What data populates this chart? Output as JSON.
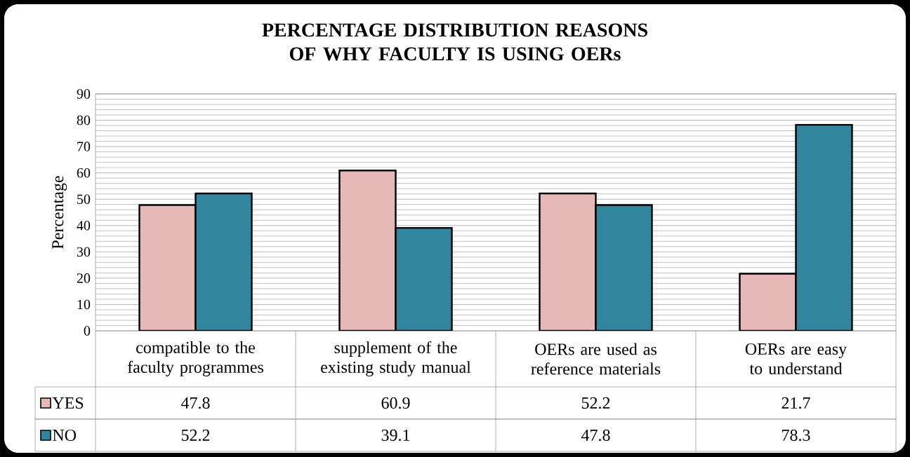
{
  "chart_data": {
    "type": "bar",
    "title": "PERCENTAGE DISTRIBUTION REASONS OF WHY FACULTY IS USING OERs",
    "ylabel": "Percentage",
    "categories": [
      "compatible to the faculty programmes",
      "supplement of the existing study manual",
      "OERs are used as reference materials",
      "OERs are easy to understand"
    ],
    "series": [
      {
        "name": "YES",
        "color": "#e6b9b8",
        "values": [
          47.8,
          60.9,
          52.2,
          21.7
        ]
      },
      {
        "name": "NO",
        "color": "#31859c",
        "values": [
          52.2,
          39.1,
          47.8,
          78.3
        ]
      }
    ],
    "ylim": [
      0,
      90
    ],
    "yticks": [
      0,
      10,
      20,
      30,
      40,
      50,
      60,
      70,
      80,
      90
    ],
    "grid": "y",
    "legend": "bottom",
    "data_labels": true
  }
}
